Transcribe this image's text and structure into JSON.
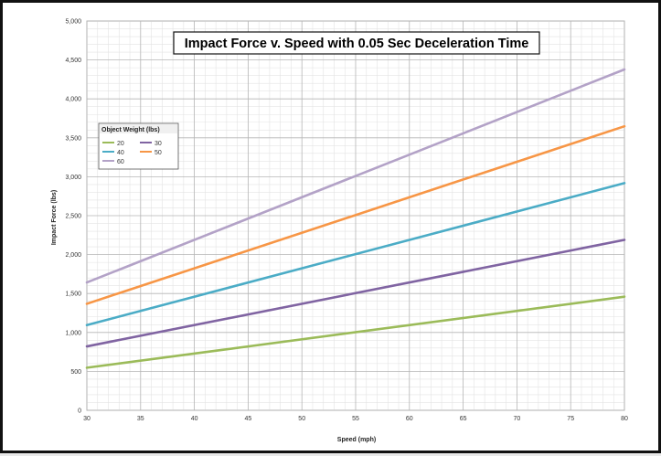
{
  "chart_data": {
    "type": "line",
    "title": "Impact Force v. Speed with 0.05 Sec Deceleration Time",
    "xlabel": "Speed (mph)",
    "ylabel": "Impact Force (lbs)",
    "xlim": [
      30,
      80
    ],
    "ylim": [
      0,
      5000
    ],
    "x_ticks": [
      "30",
      "35",
      "40",
      "45",
      "50",
      "55",
      "60",
      "65",
      "70",
      "75",
      "80"
    ],
    "y_ticks": [
      "0",
      "500",
      "1,000",
      "1,500",
      "2,000",
      "2,500",
      "3,000",
      "3,500",
      "4,000",
      "4,500",
      "5,000"
    ],
    "grid": true,
    "legend": {
      "title": "Object Weight (lbs)",
      "placement": "left"
    },
    "x": [
      30,
      80
    ],
    "series": [
      {
        "name": "20",
        "color": "#9bbb59",
        "values": [
          547,
          1459
        ]
      },
      {
        "name": "30",
        "color": "#8064a2",
        "values": [
          821,
          2189
        ]
      },
      {
        "name": "40",
        "color": "#4bacc6",
        "values": [
          1094,
          2918
        ]
      },
      {
        "name": "50",
        "color": "#f79646",
        "values": [
          1368,
          3648
        ]
      },
      {
        "name": "60",
        "color": "#b3a2c7",
        "values": [
          1642,
          4378
        ]
      }
    ]
  }
}
